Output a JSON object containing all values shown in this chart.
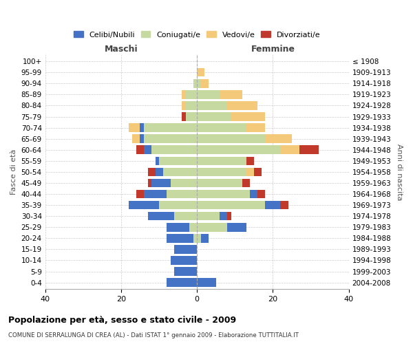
{
  "age_groups": [
    "0-4",
    "5-9",
    "10-14",
    "15-19",
    "20-24",
    "25-29",
    "30-34",
    "35-39",
    "40-44",
    "45-49",
    "50-54",
    "55-59",
    "60-64",
    "65-69",
    "70-74",
    "75-79",
    "80-84",
    "85-89",
    "90-94",
    "95-99",
    "100+"
  ],
  "birth_years": [
    "2004-2008",
    "1999-2003",
    "1994-1998",
    "1989-1993",
    "1984-1988",
    "1979-1983",
    "1974-1978",
    "1969-1973",
    "1964-1968",
    "1959-1963",
    "1954-1958",
    "1949-1953",
    "1944-1948",
    "1939-1943",
    "1934-1938",
    "1929-1933",
    "1924-1928",
    "1919-1923",
    "1914-1918",
    "1909-1913",
    "≤ 1908"
  ],
  "colors": {
    "celibe": "#4472C4",
    "coniugato": "#c5d9a0",
    "vedovo": "#f5c97a",
    "divorziato": "#c0392b"
  },
  "maschi": {
    "celibe": [
      8,
      6,
      7,
      6,
      7,
      6,
      7,
      8,
      6,
      5,
      2,
      1,
      2,
      1,
      1,
      0,
      0,
      0,
      0,
      0,
      0
    ],
    "coniugato": [
      0,
      0,
      0,
      0,
      1,
      2,
      6,
      10,
      8,
      7,
      9,
      10,
      12,
      14,
      14,
      3,
      3,
      3,
      1,
      0,
      0
    ],
    "vedovo": [
      0,
      0,
      0,
      0,
      0,
      0,
      0,
      0,
      0,
      0,
      0,
      0,
      0,
      2,
      3,
      0,
      1,
      1,
      0,
      0,
      0
    ],
    "divorziato": [
      0,
      0,
      0,
      0,
      0,
      0,
      0,
      0,
      2,
      1,
      2,
      0,
      2,
      0,
      0,
      1,
      0,
      0,
      0,
      0,
      0
    ]
  },
  "femmine": {
    "nubile": [
      5,
      0,
      0,
      0,
      2,
      5,
      2,
      4,
      2,
      0,
      0,
      0,
      0,
      0,
      0,
      0,
      0,
      0,
      0,
      0,
      0
    ],
    "coniugata": [
      0,
      0,
      0,
      0,
      1,
      8,
      6,
      18,
      14,
      12,
      13,
      13,
      22,
      18,
      13,
      9,
      8,
      6,
      1,
      0,
      0
    ],
    "vedova": [
      0,
      0,
      0,
      0,
      0,
      0,
      0,
      0,
      0,
      0,
      2,
      0,
      5,
      7,
      5,
      9,
      8,
      6,
      2,
      2,
      0
    ],
    "divorziata": [
      0,
      0,
      0,
      0,
      0,
      0,
      1,
      2,
      2,
      2,
      2,
      2,
      5,
      0,
      0,
      0,
      0,
      0,
      0,
      0,
      0
    ]
  },
  "xlim": [
    -40,
    40
  ],
  "title": "Popolazione per età, sesso e stato civile - 2009",
  "subtitle": "COMUNE DI SERRALUNGA DI CREA (AL) - Dati ISTAT 1° gennaio 2009 - Elaborazione TUTTITALIA.IT",
  "xlabel_left": "Maschi",
  "xlabel_right": "Femmine",
  "ylabel_left": "Fasce di età",
  "ylabel_right": "Anni di nascita",
  "bg_color": "#ffffff",
  "grid_color": "#cccccc"
}
